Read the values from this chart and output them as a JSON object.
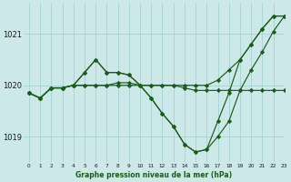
{
  "title": "Graphe pression niveau de la mer (hPa)",
  "bg_color": "#cce8e8",
  "grid_color": "#aad4d4",
  "line_color": "#1a5c1a",
  "xlim": [
    -0.5,
    23
  ],
  "ylim": [
    1018.5,
    1021.6
  ],
  "yticks": [
    1019,
    1020,
    1021
  ],
  "xticks": [
    0,
    1,
    2,
    3,
    4,
    5,
    6,
    7,
    8,
    9,
    10,
    11,
    12,
    13,
    14,
    15,
    16,
    17,
    18,
    19,
    20,
    21,
    22,
    23
  ],
  "series": [
    [
      1019.85,
      1019.75,
      1019.95,
      1019.95,
      1020.0,
      1020.25,
      1020.5,
      1020.25,
      1020.25,
      1020.2,
      1020.0,
      1019.75,
      1019.45,
      1019.2,
      1018.85,
      1018.7,
      1018.75,
      1019.0,
      1019.3,
      1019.9,
      1020.3,
      1020.65,
      1021.05,
      1021.35
    ],
    [
      1019.85,
      1019.75,
      1019.95,
      1019.95,
      1020.0,
      1020.0,
      1020.0,
      1020.0,
      1020.05,
      1020.05,
      1020.0,
      1020.0,
      1020.0,
      1020.0,
      1019.95,
      1019.9,
      1019.9,
      1019.9,
      1019.9,
      1019.9,
      1019.9,
      1019.9,
      1019.9,
      1019.9
    ],
    [
      1019.85,
      1019.75,
      1019.95,
      1019.95,
      1020.0,
      1020.25,
      1020.5,
      1020.25,
      1020.25,
      1020.2,
      1020.0,
      1020.0,
      1020.0,
      1020.0,
      1020.0,
      1020.0,
      1020.0,
      1020.1,
      1020.3,
      1020.5,
      1020.8,
      1021.1,
      1021.35,
      1021.35
    ],
    [
      1019.85,
      1019.75,
      1019.95,
      1019.95,
      1020.0,
      1020.0,
      1020.0,
      1020.0,
      1020.0,
      1020.0,
      1020.0,
      1019.75,
      1019.45,
      1019.2,
      1018.85,
      1018.7,
      1018.75,
      1019.3,
      1019.85,
      1020.5,
      1020.8,
      1021.1,
      1021.35,
      1021.35
    ]
  ],
  "figsize": [
    3.2,
    2.0
  ],
  "dpi": 100
}
